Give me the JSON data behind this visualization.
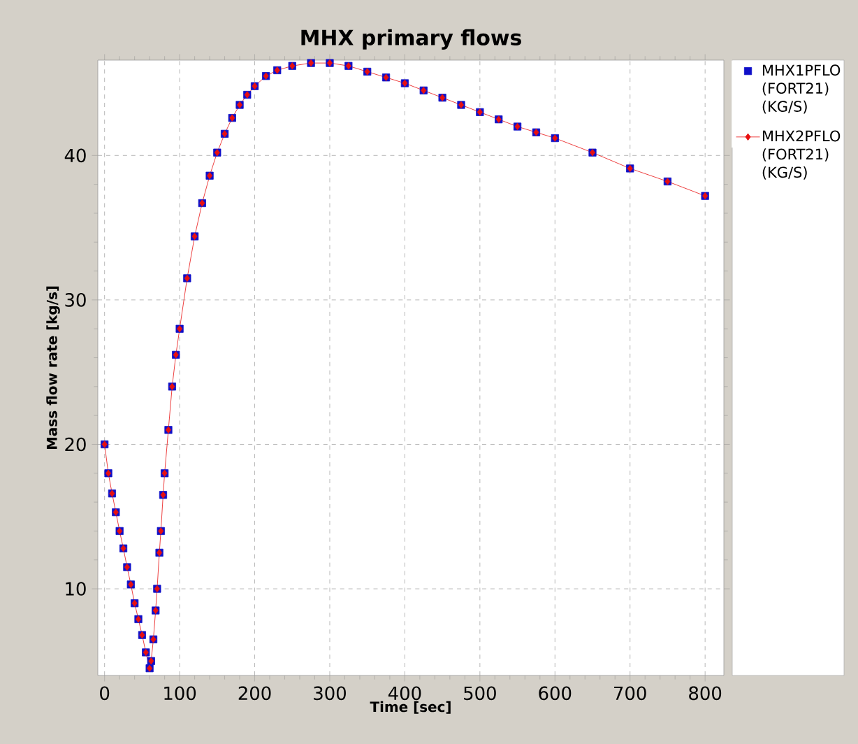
{
  "chart_data": {
    "type": "scatter",
    "title": "MHX primary flows",
    "xlabel": "Time [sec]",
    "ylabel": "Mass flow rate [kg/s]",
    "x": [
      0,
      5,
      10,
      15,
      20,
      25,
      30,
      35,
      40,
      45,
      50,
      55,
      60,
      62,
      65,
      68,
      70,
      73,
      75,
      78,
      80,
      85,
      90,
      95,
      100,
      110,
      120,
      130,
      140,
      150,
      160,
      170,
      180,
      190,
      200,
      215,
      230,
      250,
      275,
      300,
      325,
      350,
      375,
      400,
      425,
      450,
      475,
      500,
      525,
      550,
      575,
      600,
      650,
      700,
      750,
      800
    ],
    "series": [
      {
        "name": "MHX1PFLO (FORT21) (KG/S)",
        "color": "#1010c8",
        "marker": "square",
        "values": [
          20,
          18,
          16.6,
          15.3,
          14,
          12.8,
          11.5,
          10.3,
          9,
          7.9,
          6.8,
          5.6,
          4.5,
          5,
          6.5,
          8.5,
          10,
          12.5,
          14,
          16.5,
          18,
          21,
          24,
          26.2,
          28,
          31.5,
          34.4,
          36.7,
          38.6,
          40.2,
          41.5,
          42.6,
          43.5,
          44.2,
          44.8,
          45.5,
          45.9,
          46.2,
          46.4,
          46.4,
          46.2,
          45.8,
          45.4,
          45,
          44.5,
          44,
          43.5,
          43,
          42.5,
          42,
          41.6,
          41.2,
          40.2,
          39.1,
          38.2,
          37.2
        ]
      },
      {
        "name": "MHX2PFLO (FORT21) (KG/S)",
        "type": "line",
        "color": "#e81010",
        "marker": "diamond",
        "values": [
          20,
          18,
          16.6,
          15.3,
          14,
          12.8,
          11.5,
          10.3,
          9,
          7.9,
          6.8,
          5.6,
          4.5,
          5,
          6.5,
          8.5,
          10,
          12.5,
          14,
          16.5,
          18,
          21,
          24,
          26.2,
          28,
          31.5,
          34.4,
          36.7,
          38.6,
          40.2,
          41.5,
          42.6,
          43.5,
          44.2,
          44.8,
          45.5,
          45.9,
          46.2,
          46.4,
          46.4,
          46.2,
          45.8,
          45.4,
          45,
          44.5,
          44,
          43.5,
          43,
          42.5,
          42,
          41.6,
          41.2,
          40.2,
          39.1,
          38.2,
          37.2
        ]
      }
    ],
    "xlim": [
      -9,
      825
    ],
    "ylim": [
      4,
      46.6
    ],
    "xticks": [
      0,
      100,
      200,
      300,
      400,
      500,
      600,
      700,
      800
    ],
    "yticks": [
      10,
      20,
      30,
      40
    ],
    "grid": true,
    "legend": "right"
  }
}
